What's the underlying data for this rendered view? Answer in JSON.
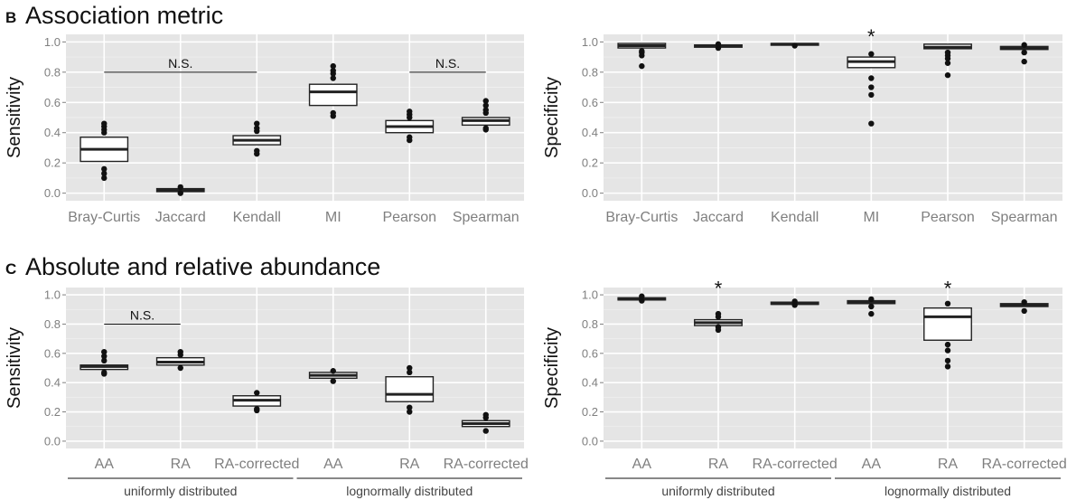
{
  "panels": {
    "B": {
      "letter": "B",
      "title": "Association metric"
    },
    "C": {
      "letter": "C",
      "title": "Absolute and relative abundance"
    }
  },
  "colors": {
    "panel_bg": "#e5e5e5",
    "grid": "#ffffff",
    "box_fill": "#ffffff",
    "box_stroke": "#222222",
    "point": "#111111"
  },
  "chart_data": [
    {
      "id": "B-sensitivity",
      "type": "boxplot",
      "ylabel": "Sensitivity",
      "ylim": [
        0,
        1
      ],
      "yticks": [
        0.0,
        0.2,
        0.4,
        0.6,
        0.8,
        1.0
      ],
      "ytick_labels": [
        "0.0",
        "0.2",
        "0.4",
        "0.6",
        "0.8",
        "1.0"
      ],
      "categories": [
        "Bray-Curtis",
        "Jaccard",
        "Kendall",
        "MI",
        "Pearson",
        "Spearman"
      ],
      "boxes": [
        {
          "q1": 0.21,
          "median": 0.29,
          "q3": 0.37,
          "outliers": [
            0.1,
            0.13,
            0.16,
            0.4,
            0.42,
            0.44,
            0.46
          ]
        },
        {
          "q1": 0.01,
          "median": 0.02,
          "q3": 0.03,
          "outliers": [
            0.0,
            0.04
          ]
        },
        {
          "q1": 0.32,
          "median": 0.35,
          "q3": 0.38,
          "outliers": [
            0.26,
            0.28,
            0.41,
            0.43,
            0.46
          ]
        },
        {
          "q1": 0.58,
          "median": 0.67,
          "q3": 0.72,
          "outliers": [
            0.51,
            0.53,
            0.76,
            0.79,
            0.81,
            0.84
          ]
        },
        {
          "q1": 0.4,
          "median": 0.44,
          "q3": 0.48,
          "outliers": [
            0.35,
            0.37,
            0.5,
            0.52,
            0.54
          ]
        },
        {
          "q1": 0.45,
          "median": 0.48,
          "q3": 0.5,
          "outliers": [
            0.42,
            0.43,
            0.53,
            0.55,
            0.58,
            0.61
          ]
        }
      ],
      "brackets": [
        {
          "from": 0,
          "to": 2,
          "y": 0.8,
          "label": "N.S."
        },
        {
          "from": 4,
          "to": 5,
          "y": 0.8,
          "label": "N.S."
        }
      ],
      "stars": [],
      "groups": []
    },
    {
      "id": "B-specificity",
      "type": "boxplot",
      "ylabel": "Specificity",
      "ylim": [
        0,
        1
      ],
      "yticks": [
        0.0,
        0.2,
        0.4,
        0.6,
        0.8,
        1.0
      ],
      "ytick_labels": [
        "0.0",
        "0.2",
        "0.4",
        "0.6",
        "0.8",
        "1.0"
      ],
      "categories": [
        "Bray-Curtis",
        "Jaccard",
        "Kendall",
        "MI",
        "Pearson",
        "Spearman"
      ],
      "boxes": [
        {
          "q1": 0.96,
          "median": 0.975,
          "q3": 0.99,
          "outliers": [
            0.84,
            0.91,
            0.93,
            0.94
          ]
        },
        {
          "q1": 0.965,
          "median": 0.972,
          "q3": 0.98,
          "outliers": [
            0.96,
            0.985
          ]
        },
        {
          "q1": 0.978,
          "median": 0.985,
          "q3": 0.99,
          "outliers": [
            0.975
          ]
        },
        {
          "q1": 0.83,
          "median": 0.87,
          "q3": 0.9,
          "outliers": [
            0.46,
            0.65,
            0.7,
            0.76,
            0.92
          ]
        },
        {
          "q1": 0.955,
          "median": 0.965,
          "q3": 0.985,
          "outliers": [
            0.78,
            0.86,
            0.89,
            0.91,
            0.93
          ]
        },
        {
          "q1": 0.95,
          "median": 0.96,
          "q3": 0.97,
          "outliers": [
            0.87,
            0.93,
            0.98
          ]
        }
      ],
      "brackets": [],
      "stars": [
        {
          "index": 3,
          "y": 1.05,
          "label": "*"
        }
      ],
      "groups": []
    },
    {
      "id": "C-sensitivity",
      "type": "boxplot",
      "ylabel": "Sensitivity",
      "ylim": [
        0,
        1
      ],
      "yticks": [
        0.0,
        0.2,
        0.4,
        0.6,
        0.8,
        1.0
      ],
      "ytick_labels": [
        "0.0",
        "0.2",
        "0.4",
        "0.6",
        "0.8",
        "1.0"
      ],
      "categories": [
        "AA",
        "RA",
        "RA-corrected",
        "AA",
        "RA",
        "RA-corrected"
      ],
      "boxes": [
        {
          "q1": 0.49,
          "median": 0.51,
          "q3": 0.52,
          "outliers": [
            0.46,
            0.47,
            0.55,
            0.58,
            0.61
          ]
        },
        {
          "q1": 0.52,
          "median": 0.54,
          "q3": 0.57,
          "outliers": [
            0.5,
            0.59,
            0.61
          ]
        },
        {
          "q1": 0.24,
          "median": 0.28,
          "q3": 0.31,
          "outliers": [
            0.21,
            0.22,
            0.33
          ]
        },
        {
          "q1": 0.43,
          "median": 0.45,
          "q3": 0.47,
          "outliers": [
            0.41,
            0.48
          ]
        },
        {
          "q1": 0.27,
          "median": 0.32,
          "q3": 0.44,
          "outliers": [
            0.2,
            0.23,
            0.47,
            0.5
          ]
        },
        {
          "q1": 0.1,
          "median": 0.12,
          "q3": 0.14,
          "outliers": [
            0.07,
            0.16,
            0.18
          ]
        }
      ],
      "brackets": [
        {
          "from": 0,
          "to": 1,
          "y": 0.8,
          "label": "N.S."
        }
      ],
      "stars": [],
      "groups": [
        {
          "from": 0,
          "to": 2,
          "label": "uniformly distributed"
        },
        {
          "from": 3,
          "to": 5,
          "label": "lognormally distributed"
        }
      ]
    },
    {
      "id": "C-specificity",
      "type": "boxplot",
      "ylabel": "Specificity",
      "ylim": [
        0,
        1
      ],
      "yticks": [
        0.0,
        0.2,
        0.4,
        0.6,
        0.8,
        1.0
      ],
      "ytick_labels": [
        "0.0",
        "0.2",
        "0.4",
        "0.6",
        "0.8",
        "1.0"
      ],
      "categories": [
        "AA",
        "RA",
        "RA-corrected",
        "AA",
        "RA",
        "RA-corrected"
      ],
      "boxes": [
        {
          "q1": 0.965,
          "median": 0.97,
          "q3": 0.98,
          "outliers": [
            0.96,
            0.99
          ]
        },
        {
          "q1": 0.79,
          "median": 0.81,
          "q3": 0.83,
          "outliers": [
            0.76,
            0.78,
            0.85,
            0.87
          ]
        },
        {
          "q1": 0.935,
          "median": 0.94,
          "q3": 0.95,
          "outliers": [
            0.93,
            0.955
          ]
        },
        {
          "q1": 0.94,
          "median": 0.95,
          "q3": 0.96,
          "outliers": [
            0.87,
            0.92,
            0.97
          ]
        },
        {
          "q1": 0.69,
          "median": 0.85,
          "q3": 0.91,
          "outliers": [
            0.51,
            0.55,
            0.62,
            0.66,
            0.94
          ]
        },
        {
          "q1": 0.92,
          "median": 0.93,
          "q3": 0.94,
          "outliers": [
            0.89,
            0.95
          ]
        }
      ],
      "brackets": [],
      "stars": [
        {
          "index": 1,
          "y": 1.06,
          "label": "*"
        },
        {
          "index": 4,
          "y": 1.06,
          "label": "*"
        }
      ],
      "groups": [
        {
          "from": 0,
          "to": 2,
          "label": "uniformly distributed"
        },
        {
          "from": 3,
          "to": 5,
          "label": "lognormally distributed"
        }
      ]
    }
  ]
}
